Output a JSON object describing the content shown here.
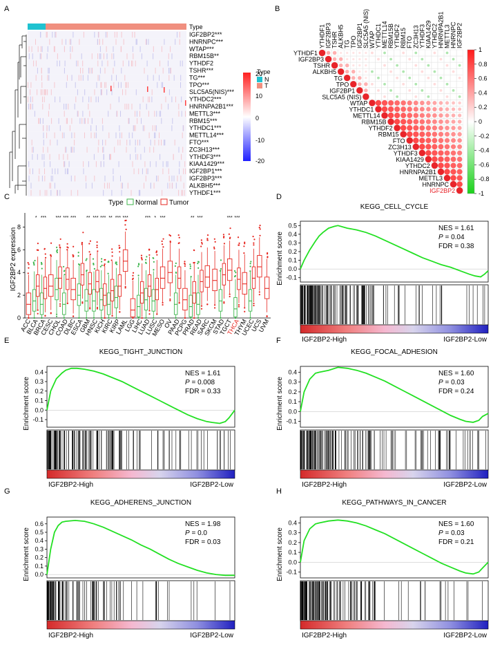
{
  "panels": {
    "A": {
      "label": "A",
      "type_label": "Type",
      "legend_title": "Type",
      "legend_items": [
        {
          "name": "N",
          "color": "#1fc2d0"
        },
        {
          "name": "T",
          "color": "#f08f7f"
        }
      ],
      "colorbar_ticks": [
        20,
        10,
        0,
        -10,
        -20
      ],
      "rows": [
        "IGF2BP2***",
        "HNRNPC***",
        "WTAP***",
        "RBM15B**",
        "YTHDF2",
        "TSHR***",
        "TG***",
        "TPO***",
        "SLC5A5(NIS)***",
        "YTHDC2***",
        "HNRNPA2B1***",
        "METTL3***",
        "RBM15***",
        "YTHDC1***",
        "METTL14***",
        "FTO***",
        "ZC3H13***",
        "YTHDF3***",
        "KIAA1429***",
        "IGF2BP1***",
        "IGF2BP3***",
        "ALKBH5***",
        "YTHDF1***"
      ]
    },
    "B": {
      "label": "B",
      "genes": [
        "YTHDF1",
        "IGF2BP3",
        "TSHR",
        "ALKBH5",
        "TG",
        "TPO",
        "IGF2BP1",
        "SLC5A5 (NIS)",
        "WTAP",
        "YTHDC1",
        "METTL14",
        "RBM15B",
        "YTHDF2",
        "RBM15",
        "FTO",
        "ZC3H13",
        "YTHDF3",
        "KIAA1429",
        "YTHDC2",
        "HNRNPA2B1",
        "METTL3",
        "HNRNPC",
        "IGF2BP2"
      ],
      "highlight_gene": "IGF2BP2",
      "highlight_color": "#e8242a",
      "colorbar_ticks": [
        "1",
        "0.8",
        "0.6",
        "0.4",
        "0.2",
        "0",
        "-0.2",
        "-0.4",
        "-0.6",
        "-0.8",
        "-1"
      ]
    },
    "C": {
      "label": "C",
      "legend_title": "Type",
      "legend_items": [
        {
          "name": "Normal",
          "color": "#3cb44b"
        },
        {
          "name": "Tumor",
          "color": "#e6261f"
        }
      ],
      "ylabel": "IGF2BP2 expression",
      "yticks": [
        0,
        2,
        4,
        6,
        8
      ],
      "cancers": [
        "ACC",
        "BLCA",
        "BRCA",
        "CESC",
        "CHOL",
        "COAD",
        "DLBC",
        "ESCA",
        "GBM",
        "HNSC",
        "KICH",
        "KIRC",
        "KIRP",
        "LAML",
        "LGG",
        "LIHC",
        "LUAD",
        "LUSC",
        "MESO",
        "OV",
        "PAAD",
        "PCPG",
        "PRAD",
        "READ",
        "SARC",
        "SKCM",
        "STAD",
        "TGCT",
        "THCA",
        "THYM",
        "UCEC",
        "UCS",
        "UVM"
      ],
      "highlight_cancer": "THCA",
      "significance": [
        "",
        "*",
        "***",
        "",
        "***",
        "***",
        "***",
        "",
        "**",
        "***",
        "***",
        "**",
        "***",
        "***",
        "",
        "",
        "***",
        "*",
        "***",
        "",
        "",
        "",
        "**",
        "***",
        "",
        "",
        "",
        "***",
        "***",
        "",
        "",
        "",
        ""
      ]
    },
    "gsea_common": {
      "ylabel": "Enrichment score",
      "high_label": "IGF2BP2-High",
      "low_label": "IGF2BP2-Low",
      "curve_color": "#22e022"
    },
    "D": {
      "label": "D",
      "title": "KEGG_CELL_CYCLE",
      "nes": "NES = 1.61",
      "p": "= 0.04",
      "fdr": "FDR = 0.38",
      "yticks": [
        "0.5",
        "0.4",
        "0.3",
        "0.2",
        "0.1",
        "0.0",
        "-0.1"
      ]
    },
    "E": {
      "label": "E",
      "title": "KEGG_TIGHT_JUNCTION",
      "nes": "NES = 1.61",
      "p": "= 0.008",
      "fdr": "FDR = 0.33",
      "yticks": [
        "0.4",
        "0.3",
        "0.2",
        "0.1",
        "0.0",
        "-0.1"
      ]
    },
    "F": {
      "label": "F",
      "title": "KEGG_FOCAL_ADHESION",
      "nes": "NES = 1.60",
      "p": "= 0.03",
      "fdr": "FDR = 0.24",
      "yticks": [
        "0.4",
        "0.3",
        "0.2",
        "0.1",
        "0.0",
        "-0.1"
      ]
    },
    "G": {
      "label": "G",
      "title": "KEGG_ADHERENS_JUNCTION",
      "nes": "NES = 1.98",
      "p": "= 0.0",
      "fdr": "FDR = 0.03",
      "yticks": [
        "0.6",
        "0.5",
        "0.4",
        "0.3",
        "0.2",
        "0.1",
        "0.0"
      ]
    },
    "H": {
      "label": "H",
      "title": "KEGG_PATHWAYS_IN_CANCER",
      "nes": "NES = 1.60",
      "p": "= 0.03",
      "fdr": "FDR = 0.21",
      "yticks": [
        "0.4",
        "0.3",
        "0.2",
        "0.1",
        "0.0",
        "-0.1"
      ]
    },
    "p_symbol": "P"
  },
  "chart_data": [
    {
      "type": "line",
      "panel": "D",
      "title": "KEGG_CELL_CYCLE",
      "ylabel": "Enrichment score",
      "ylim": [
        -0.15,
        0.55
      ],
      "x": [
        0,
        0.02,
        0.05,
        0.08,
        0.1,
        0.12,
        0.15,
        0.18,
        0.2,
        0.25,
        0.3,
        0.35,
        0.4,
        0.45,
        0.5,
        0.55,
        0.6,
        0.65,
        0.7,
        0.75,
        0.8,
        0.85,
        0.9,
        0.93,
        0.96,
        0.98,
        1.0
      ],
      "y": [
        0,
        0.1,
        0.22,
        0.32,
        0.38,
        0.42,
        0.47,
        0.49,
        0.5,
        0.47,
        0.45,
        0.42,
        0.38,
        0.33,
        0.28,
        0.23,
        0.18,
        0.13,
        0.09,
        0.05,
        0.02,
        -0.02,
        -0.06,
        -0.08,
        -0.09,
        -0.06,
        -0.02
      ]
    },
    {
      "type": "line",
      "panel": "E",
      "title": "KEGG_TIGHT_JUNCTION",
      "ylabel": "Enrichment score",
      "ylim": [
        -0.18,
        0.46
      ],
      "x": [
        0,
        0.02,
        0.05,
        0.08,
        0.1,
        0.13,
        0.16,
        0.2,
        0.25,
        0.3,
        0.35,
        0.4,
        0.45,
        0.5,
        0.55,
        0.6,
        0.65,
        0.7,
        0.75,
        0.8,
        0.85,
        0.88,
        0.92,
        0.95,
        0.97,
        1.0
      ],
      "y": [
        0,
        0.2,
        0.33,
        0.39,
        0.42,
        0.44,
        0.44,
        0.43,
        0.41,
        0.38,
        0.34,
        0.3,
        0.25,
        0.2,
        0.15,
        0.1,
        0.05,
        0.0,
        -0.05,
        -0.09,
        -0.12,
        -0.13,
        -0.14,
        -0.12,
        -0.08,
        0.0
      ]
    },
    {
      "type": "line",
      "panel": "F",
      "title": "KEGG_FOCAL_ADHESION",
      "ylabel": "Enrichment score",
      "ylim": [
        -0.16,
        0.46
      ],
      "x": [
        0,
        0.02,
        0.05,
        0.08,
        0.1,
        0.15,
        0.2,
        0.25,
        0.3,
        0.35,
        0.4,
        0.45,
        0.5,
        0.55,
        0.6,
        0.65,
        0.7,
        0.75,
        0.8,
        0.85,
        0.88,
        0.92,
        0.95,
        0.97,
        1.0
      ],
      "y": [
        0,
        0.2,
        0.33,
        0.39,
        0.4,
        0.42,
        0.45,
        0.44,
        0.42,
        0.39,
        0.35,
        0.31,
        0.26,
        0.21,
        0.16,
        0.11,
        0.06,
        0.01,
        -0.04,
        -0.08,
        -0.1,
        -0.11,
        -0.09,
        -0.05,
        -0.02
      ]
    },
    {
      "type": "line",
      "panel": "G",
      "title": "KEGG_ADHERENS_JUNCTION",
      "ylabel": "Enrichment score",
      "ylim": [
        -0.04,
        0.68
      ],
      "x": [
        0,
        0.02,
        0.04,
        0.06,
        0.08,
        0.1,
        0.15,
        0.2,
        0.25,
        0.3,
        0.35,
        0.4,
        0.45,
        0.5,
        0.55,
        0.6,
        0.65,
        0.7,
        0.75,
        0.8,
        0.85,
        0.9,
        0.95,
        1.0
      ],
      "y": [
        0,
        0.3,
        0.5,
        0.58,
        0.62,
        0.63,
        0.64,
        0.63,
        0.6,
        0.56,
        0.51,
        0.46,
        0.41,
        0.35,
        0.3,
        0.24,
        0.18,
        0.13,
        0.09,
        0.05,
        0.02,
        0.0,
        -0.01,
        -0.01
      ]
    },
    {
      "type": "line",
      "panel": "H",
      "title": "KEGG_PATHWAYS_IN_CANCER",
      "ylabel": "Enrichment score",
      "ylim": [
        -0.16,
        0.46
      ],
      "x": [
        0,
        0.02,
        0.05,
        0.08,
        0.1,
        0.15,
        0.2,
        0.25,
        0.3,
        0.35,
        0.4,
        0.45,
        0.5,
        0.55,
        0.6,
        0.65,
        0.7,
        0.75,
        0.8,
        0.85,
        0.88,
        0.92,
        0.95,
        0.97,
        1.0
      ],
      "y": [
        0,
        0.22,
        0.34,
        0.39,
        0.4,
        0.42,
        0.43,
        0.42,
        0.4,
        0.37,
        0.33,
        0.29,
        0.24,
        0.19,
        0.14,
        0.09,
        0.04,
        -0.01,
        -0.05,
        -0.09,
        -0.11,
        -0.12,
        -0.1,
        -0.06,
        0.0
      ]
    },
    {
      "type": "box",
      "panel": "C",
      "ylabel": "IGF2BP2 expression",
      "ylim": [
        0,
        9
      ],
      "categories": [
        "ACC",
        "BLCA",
        "BRCA",
        "CESC",
        "CHOL",
        "COAD",
        "DLBC",
        "ESCA",
        "GBM",
        "HNSC",
        "KICH",
        "KIRC",
        "KIRP",
        "LAML",
        "LGG",
        "LIHC",
        "LUAD",
        "LUSC",
        "MESO",
        "OV",
        "PAAD",
        "PCPG",
        "PRAD",
        "READ",
        "SARC",
        "SKCM",
        "STAD",
        "TGCT",
        "THCA",
        "THYM",
        "UCEC",
        "UCS",
        "UVM"
      ],
      "series": [
        {
          "name": "Normal",
          "values": [
            null,
            1.5,
            1.2,
            null,
            2.5,
            1.2,
            null,
            2.0,
            1.5,
            1.5,
            1.6,
            1.2,
            1.8,
            null,
            null,
            1.0,
            1.6,
            1.5,
            null,
            null,
            1.2,
            null,
            1.0,
            1.2,
            null,
            null,
            1.5,
            null,
            0.8,
            null,
            1.5,
            null,
            null
          ]
        },
        {
          "name": "Tumor",
          "values": [
            1.2,
            2.8,
            2.6,
            2.8,
            3.5,
            3.4,
            2.5,
            3.8,
            3.0,
            3.2,
            2.0,
            2.4,
            2.8,
            5.0,
            0.7,
            2.2,
            2.8,
            2.5,
            3.5,
            4.0,
            3.5,
            1.6,
            2.2,
            3.2,
            3.6,
            3.3,
            3.8,
            4.2,
            3.4,
            3.0,
            3.5,
            4.5,
            2.6
          ]
        }
      ]
    }
  ]
}
